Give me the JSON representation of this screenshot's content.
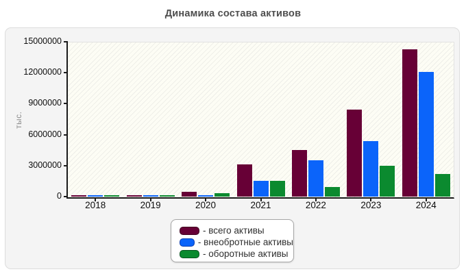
{
  "title": "Динамика состава активов",
  "chart_data": {
    "type": "bar",
    "title": "Динамика состава активов",
    "xlabel": "",
    "ylabel": "тыс.",
    "categories": [
      "2018",
      "2019",
      "2020",
      "2021",
      "2022",
      "2023",
      "2024"
    ],
    "series": [
      {
        "name": "всего активы",
        "color": "#670036",
        "border": "#40001f",
        "values": [
          120000,
          120000,
          450000,
          3100000,
          4500000,
          8400000,
          14250000
        ]
      },
      {
        "name": "внеобротные активы",
        "color": "#0b64fa",
        "border": "#0a3cb0",
        "values": [
          100000,
          100000,
          130000,
          1550000,
          3550000,
          5400000,
          12100000
        ]
      },
      {
        "name": "оборотные активы",
        "color": "#0b8a2f",
        "border": "#05521c",
        "values": [
          150000,
          160000,
          350000,
          1550000,
          950000,
          3000000,
          2200000
        ]
      }
    ],
    "ylim": [
      0,
      15000000
    ],
    "yticks": [
      0,
      3000000,
      6000000,
      9000000,
      12000000,
      15000000
    ],
    "ytick_labels": [
      "0",
      "3000000",
      "6000000",
      "9000000",
      "12000000",
      "15000000"
    ],
    "grid": "dashed, horizontal at yticks and vertical at category centers",
    "legend_position": "bottom-center",
    "legend": {
      "items": [
        {
          "label": "- всего активы"
        },
        {
          "label": "- внеобротные активы"
        },
        {
          "label": "- оборотные активы"
        }
      ]
    }
  }
}
